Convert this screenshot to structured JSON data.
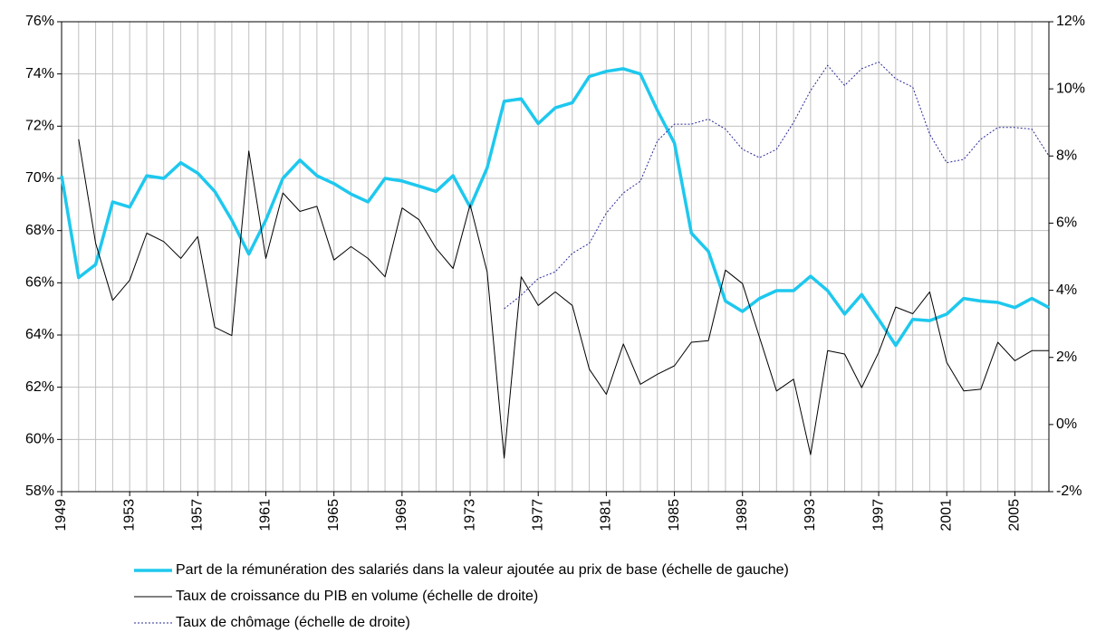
{
  "chart_data": {
    "type": "line",
    "x": [
      1949,
      1950,
      1951,
      1952,
      1953,
      1954,
      1955,
      1956,
      1957,
      1958,
      1959,
      1960,
      1961,
      1962,
      1963,
      1964,
      1965,
      1966,
      1967,
      1968,
      1969,
      1970,
      1971,
      1972,
      1973,
      1974,
      1975,
      1976,
      1977,
      1978,
      1979,
      1980,
      1981,
      1982,
      1983,
      1984,
      1985,
      1986,
      1987,
      1988,
      1989,
      1990,
      1991,
      1992,
      1993,
      1994,
      1995,
      1996,
      1997,
      1998,
      1999,
      2000,
      2001,
      2002,
      2003,
      2004,
      2005,
      2006,
      2007
    ],
    "xlim": [
      1949,
      2007
    ],
    "xticks": [
      1949,
      1953,
      1957,
      1961,
      1965,
      1969,
      1973,
      1977,
      1981,
      1985,
      1989,
      1993,
      1997,
      2001,
      2005
    ],
    "ylim": [
      58,
      76
    ],
    "yticks": [
      {
        "value": 58,
        "label": "58%"
      },
      {
        "value": 60,
        "label": "60%"
      },
      {
        "value": 62,
        "label": "62%"
      },
      {
        "value": 64,
        "label": "64%"
      },
      {
        "value": 66,
        "label": "66%"
      },
      {
        "value": 68,
        "label": "68%"
      },
      {
        "value": 70,
        "label": "70%"
      },
      {
        "value": 72,
        "label": "72%"
      },
      {
        "value": 74,
        "label": "74%"
      },
      {
        "value": 76,
        "label": "76%"
      }
    ],
    "y2lim": [
      -2,
      12
    ],
    "y2ticks": [
      {
        "value": -2,
        "label": "-2%"
      },
      {
        "value": 0,
        "label": "0%"
      },
      {
        "value": 2,
        "label": "2%"
      },
      {
        "value": 4,
        "label": "4%"
      },
      {
        "value": 6,
        "label": "6%"
      },
      {
        "value": 8,
        "label": "8%"
      },
      {
        "value": 10,
        "label": "10%"
      },
      {
        "value": 12,
        "label": "12%"
      }
    ],
    "grid": true,
    "legend": "bottom",
    "series": [
      {
        "name": "Part de la rémunération des salariés dans la valeur ajoutée au prix de base (échelle de gauche)",
        "color": "#1ec8ee",
        "width": 3.5,
        "dash": "solid",
        "values": [
          70.1,
          66.2,
          66.7,
          69.1,
          68.9,
          70.1,
          70.0,
          70.6,
          70.2,
          69.5,
          68.4,
          67.1,
          68.4,
          70.0,
          70.7,
          70.1,
          69.8,
          69.4,
          69.1,
          70.0,
          69.9,
          69.7,
          69.5,
          70.1,
          68.9,
          70.4,
          72.95,
          73.05,
          72.1,
          72.7,
          72.9,
          73.9,
          74.1,
          74.2,
          74.0,
          72.6,
          71.35,
          67.9,
          67.2,
          65.3,
          64.9,
          65.4,
          65.7,
          65.7,
          66.25,
          65.7,
          64.8,
          65.55,
          64.6,
          63.6,
          64.6,
          64.55,
          64.8,
          65.4,
          65.3,
          65.25,
          65.05,
          65.4,
          65.05
        ]
      },
      {
        "name": "Taux de croissance du PIB en volume (échelle de droite)",
        "color": "#000000",
        "width": 1,
        "dash": "solid",
        "axis": "y2",
        "values": [
          null,
          8.5,
          5.4,
          3.7,
          4.3,
          5.7,
          5.45,
          4.95,
          5.6,
          2.9,
          2.65,
          8.15,
          4.95,
          6.9,
          6.35,
          6.5,
          4.9,
          5.3,
          4.95,
          4.4,
          6.45,
          6.1,
          5.25,
          4.65,
          6.55,
          4.55,
          -1.0,
          4.4,
          3.55,
          3.95,
          3.55,
          1.65,
          0.9,
          2.4,
          1.2,
          1.5,
          1.75,
          2.45,
          2.5,
          4.6,
          4.2,
          2.6,
          1.0,
          1.35,
          -0.9,
          2.2,
          2.1,
          1.1,
          2.15,
          3.5,
          3.3,
          3.95,
          1.85,
          1.0,
          1.05,
          2.45,
          1.9,
          2.2,
          2.2
        ]
      },
      {
        "name": "Taux de chômage (échelle de droite)",
        "color": "#2b2b9a",
        "width": 1,
        "dash": "dotted",
        "axis": "y2",
        "values": [
          null,
          null,
          null,
          null,
          null,
          null,
          null,
          null,
          null,
          null,
          null,
          null,
          null,
          null,
          null,
          null,
          null,
          null,
          null,
          null,
          null,
          null,
          null,
          null,
          null,
          null,
          3.45,
          3.85,
          4.35,
          4.55,
          5.1,
          5.4,
          6.3,
          6.9,
          7.25,
          8.45,
          8.95,
          8.95,
          9.1,
          8.8,
          8.2,
          7.95,
          8.2,
          9.0,
          9.95,
          10.7,
          10.1,
          10.6,
          10.8,
          10.3,
          10.05,
          8.65,
          7.8,
          7.9,
          8.5,
          8.85,
          8.85,
          8.8,
          8.0
        ]
      }
    ]
  }
}
